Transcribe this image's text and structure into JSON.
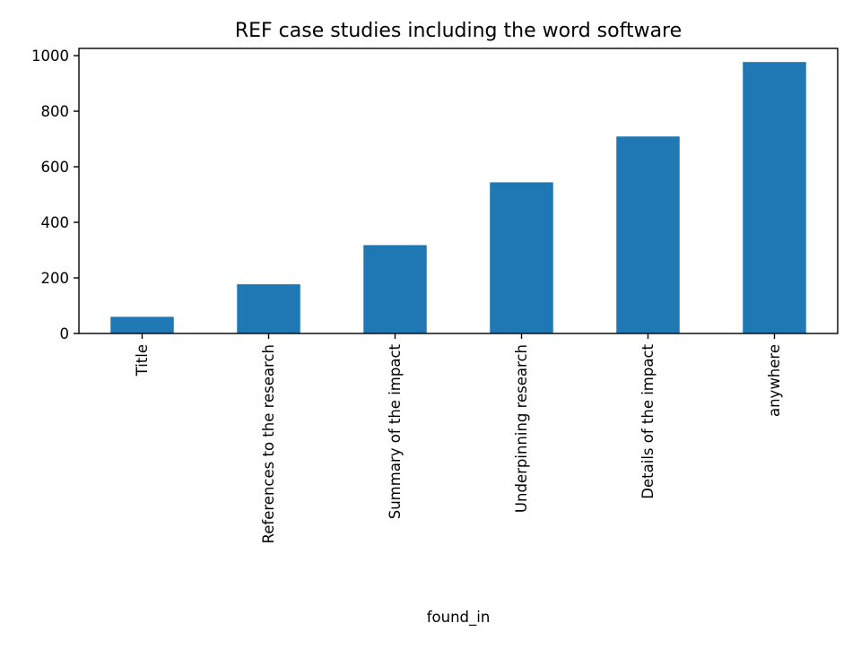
{
  "chart_data": {
    "type": "bar",
    "title": "REF case studies including the word software",
    "xlabel": "found_in",
    "ylabel": "",
    "categories": [
      "Title",
      "References to the research",
      "Summary of the impact",
      "Underpinning research",
      "Details of the impact",
      "anywhere"
    ],
    "values": [
      60,
      177,
      318,
      544,
      709,
      977
    ],
    "ylim": [
      0,
      1026
    ],
    "yticks": [
      0,
      200,
      400,
      600,
      800,
      1000
    ],
    "grid": false,
    "legend": "none",
    "colors": {
      "bar": "#1f77b4",
      "axis": "#000000",
      "background": "#ffffff"
    }
  }
}
